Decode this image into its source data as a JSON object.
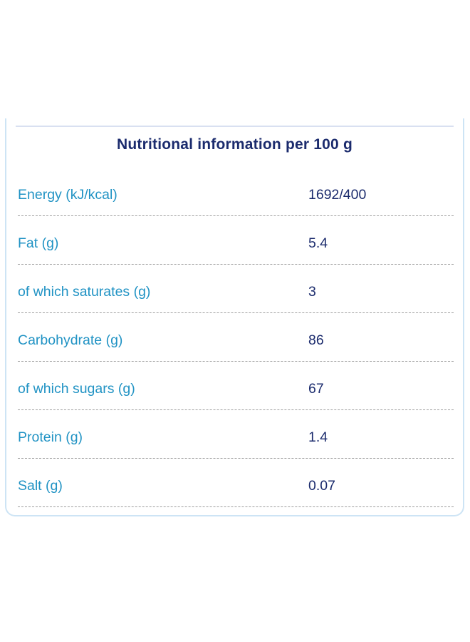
{
  "table": {
    "title": "Nutritional information per 100 g",
    "rows": [
      {
        "label": "Energy (kJ/kcal)",
        "value": "1692/400"
      },
      {
        "label": "Fat (g)",
        "value": "5.4"
      },
      {
        "label": "of which saturates (g)",
        "value": "3"
      },
      {
        "label": "Carbohydrate (g)",
        "value": "86"
      },
      {
        "label": "of which sugars (g)",
        "value": "67"
      },
      {
        "label": "Protein (g)",
        "value": "1.4"
      },
      {
        "label": "Salt (g)",
        "value": "0.07"
      }
    ],
    "colors": {
      "label_text": "#2193c4",
      "value_text": "#1b2b6d",
      "title_text": "#1b2b6d",
      "card_border": "#cde4f5",
      "header_rule": "#d9e0f1",
      "row_divider": "#9e9e9e"
    }
  }
}
